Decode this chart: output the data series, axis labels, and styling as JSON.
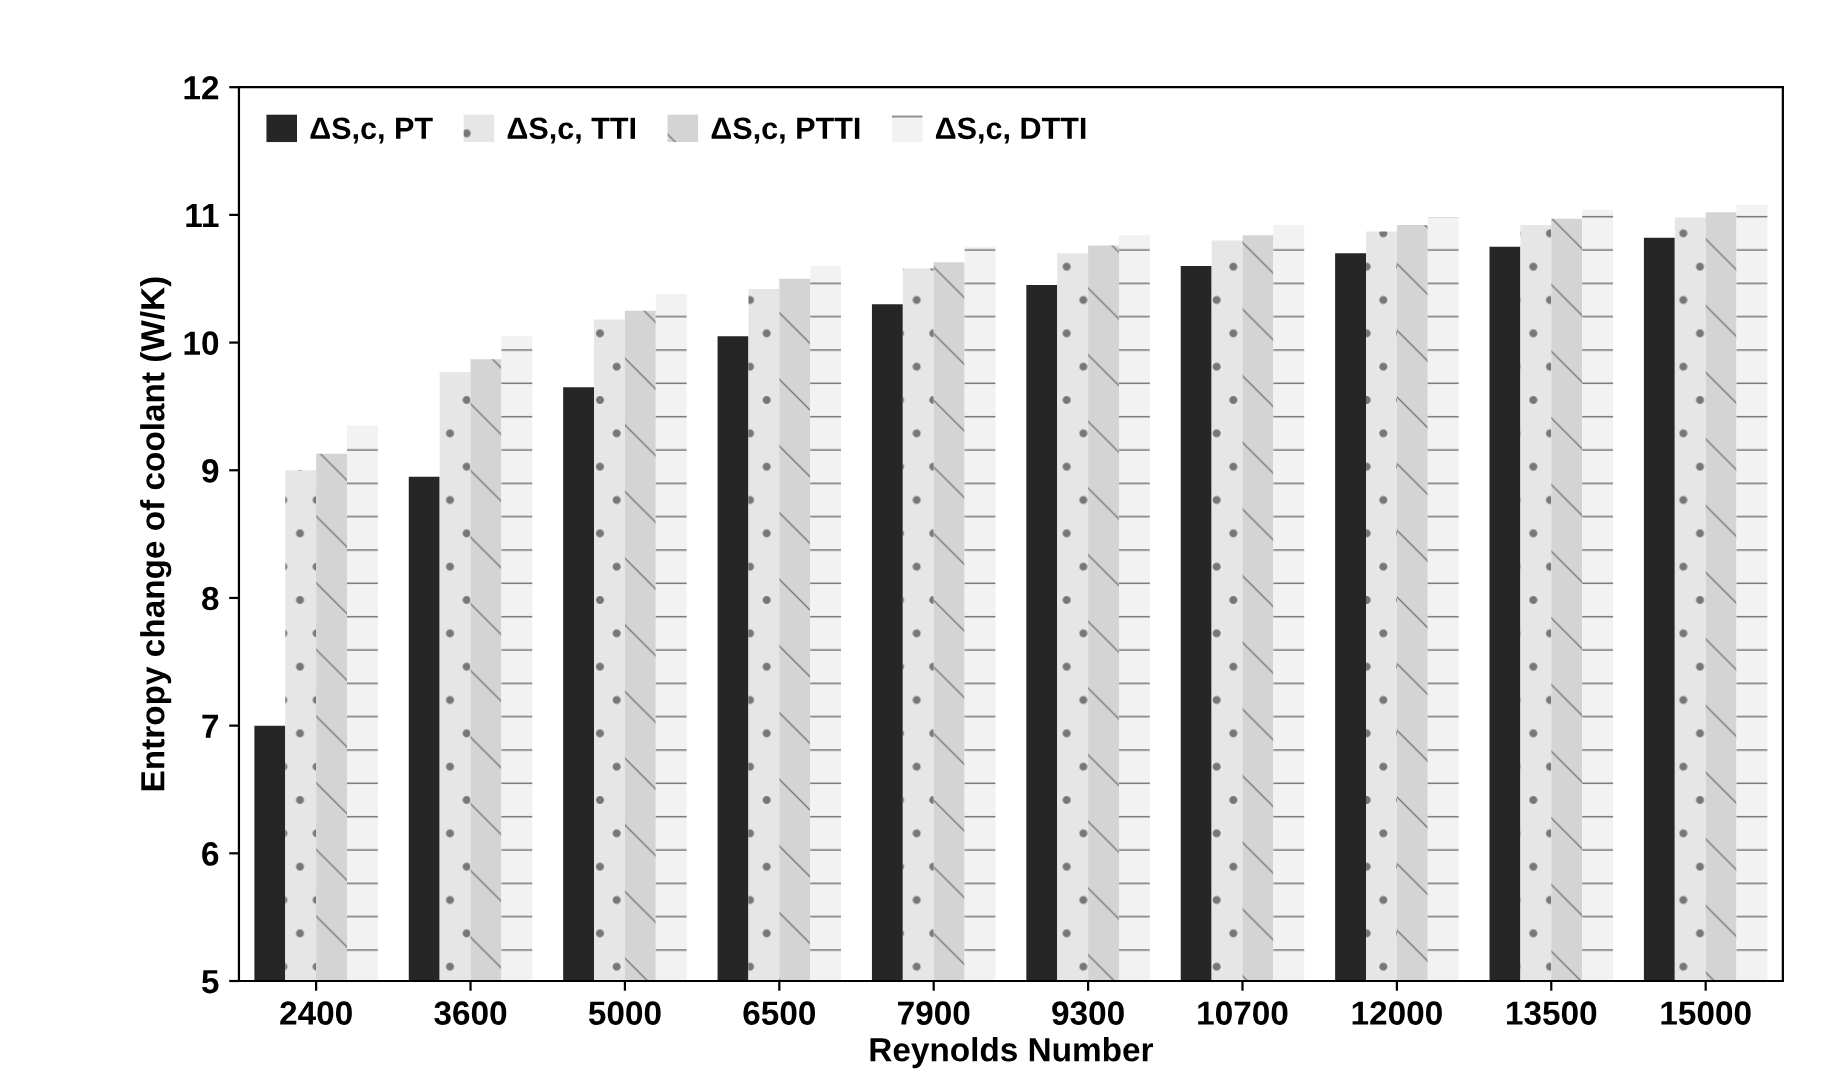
{
  "chart_data": {
    "type": "bar",
    "xlabel": "Reynolds Number",
    "ylabel": "Entropy change of coolant (W/K)",
    "categories": [
      "2400",
      "3600",
      "5000",
      "6500",
      "7900",
      "9300",
      "10700",
      "12000",
      "13500",
      "15000"
    ],
    "series": [
      {
        "name": "ΔS,c, PT",
        "color": "#262626",
        "values": [
          7.0,
          8.95,
          9.65,
          10.05,
          10.3,
          10.45,
          10.6,
          10.7,
          10.75,
          10.82
        ]
      },
      {
        "name": "ΔS,c, TTI",
        "color": "#e6e6e6",
        "values": [
          9.0,
          9.77,
          10.18,
          10.42,
          10.58,
          10.7,
          10.8,
          10.87,
          10.92,
          10.98
        ]
      },
      {
        "name": "ΔS,c, PTTI",
        "color": "#d4d4d4",
        "values": [
          9.13,
          9.87,
          10.25,
          10.5,
          10.63,
          10.76,
          10.84,
          10.92,
          10.97,
          11.02
        ]
      },
      {
        "name": "ΔS,c, DTTI",
        "color": "#f2f2f2",
        "values": [
          9.35,
          10.05,
          10.38,
          10.6,
          10.75,
          10.84,
          10.92,
          10.98,
          11.04,
          11.08
        ]
      }
    ],
    "ylim": [
      5,
      12
    ],
    "yticks": [
      5,
      6,
      7,
      8,
      9,
      10,
      11,
      12
    ],
    "grid": false,
    "legend": "top left"
  }
}
